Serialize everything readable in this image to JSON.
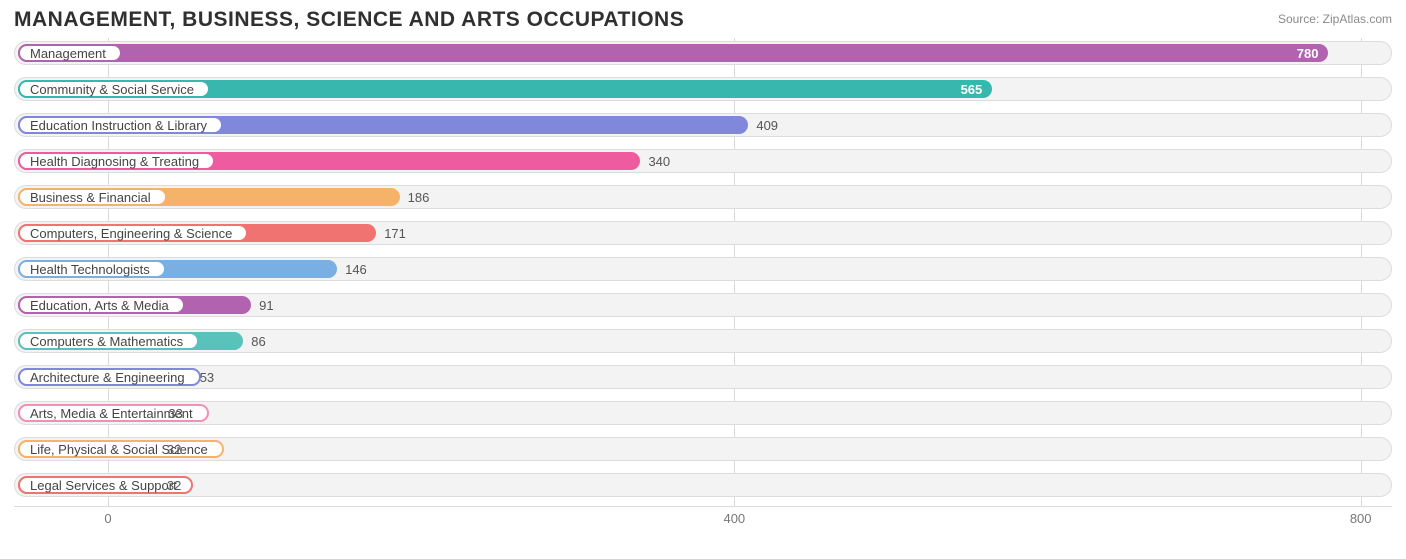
{
  "title": "MANAGEMENT, BUSINESS, SCIENCE AND ARTS OCCUPATIONS",
  "source": "Source: ZipAtlas.com",
  "chart": {
    "type": "bar-horizontal",
    "xlim": [
      -60,
      820
    ],
    "xticks": [
      0,
      400,
      800
    ],
    "track_bg": "#f3f3f3",
    "track_border": "#dcdcdc",
    "grid_color": "#d9d9d9",
    "label_fontsize": 13,
    "value_fontsize": 13,
    "bars": [
      {
        "label": "Management",
        "value": 780,
        "color": "#b263b0",
        "value_inside": true
      },
      {
        "label": "Community & Social Service",
        "value": 565,
        "color": "#37b7ae",
        "value_inside": true
      },
      {
        "label": "Education Instruction & Library",
        "value": 409,
        "color": "#8088dc",
        "value_inside": false
      },
      {
        "label": "Health Diagnosing & Treating",
        "value": 340,
        "color": "#ee5b9f",
        "value_inside": false
      },
      {
        "label": "Business & Financial",
        "value": 186,
        "color": "#f5b36a",
        "value_inside": false
      },
      {
        "label": "Computers, Engineering & Science",
        "value": 171,
        "color": "#f07371",
        "value_inside": false
      },
      {
        "label": "Health Technologists",
        "value": 146,
        "color": "#79afe2",
        "value_inside": false
      },
      {
        "label": "Education, Arts & Media",
        "value": 91,
        "color": "#b263b0",
        "value_inside": false
      },
      {
        "label": "Computers & Mathematics",
        "value": 86,
        "color": "#59c3bb",
        "value_inside": false
      },
      {
        "label": "Architecture & Engineering",
        "value": 53,
        "color": "#8088dc",
        "value_inside": false
      },
      {
        "label": "Arts, Media & Entertainment",
        "value": 33,
        "color": "#f28fb9",
        "value_inside": false
      },
      {
        "label": "Life, Physical & Social Science",
        "value": 32,
        "color": "#f5b36a",
        "value_inside": false
      },
      {
        "label": "Legal Services & Support",
        "value": 32,
        "color": "#f07371",
        "value_inside": false
      }
    ]
  }
}
